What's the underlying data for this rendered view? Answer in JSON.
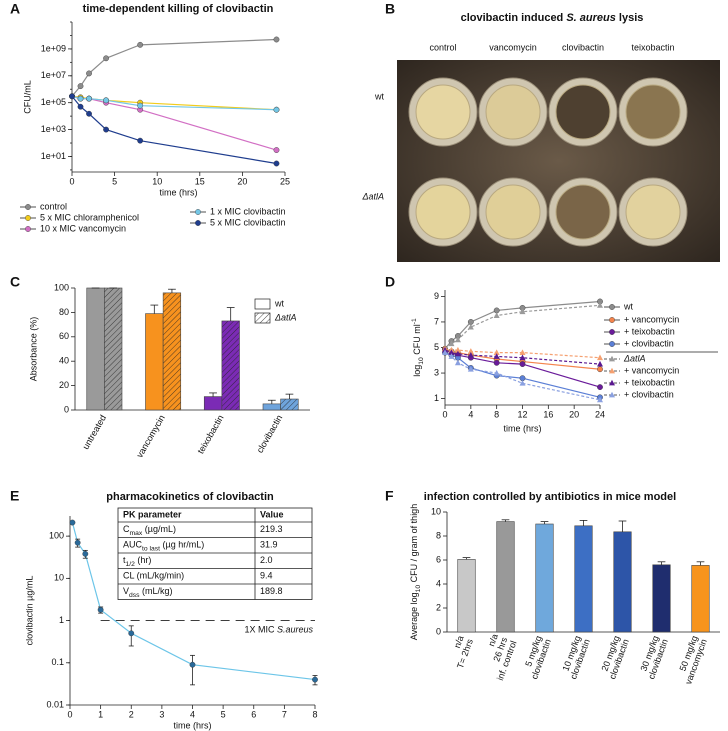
{
  "panel_labels": [
    "A",
    "B",
    "C",
    "D",
    "E",
    "F"
  ],
  "lysis_image": {
    "title": [
      "clovibactin induced ",
      "S. aureus",
      " lysis"
    ],
    "title_styles": [
      "normal",
      "italic",
      "normal"
    ],
    "columns": [
      "control",
      "vancomycin",
      "clovibactin",
      "teixobactin"
    ],
    "rows": [
      "wt",
      "ΔatlA"
    ],
    "row_styles": [
      "normal",
      "italic"
    ]
  },
  "chart_data": [
    {
      "type": "line",
      "title": "time-dependent killing of clovibactin",
      "xlabel": "time (hrs)",
      "ylabel": "CFU/mL",
      "yscale": "log",
      "xlim": [
        0,
        25
      ],
      "xticks": [
        0,
        5,
        10,
        15,
        20,
        25
      ],
      "ylim": [
        0.7,
        100000000000
      ],
      "yticks": [
        {
          "value": 10,
          "label": "1e+01"
        },
        {
          "value": 1000,
          "label": "1e+03"
        },
        {
          "value": 100000,
          "label": "1e+05"
        },
        {
          "value": 10000000,
          "label": "1e+07"
        },
        {
          "value": 1000000000,
          "label": "1e+09"
        }
      ],
      "x": [
        0,
        1,
        2,
        4,
        8,
        24
      ],
      "series": [
        {
          "name": "control",
          "color": "#8c8c8c",
          "marker": "circle",
          "values": [
            300000,
            1700000,
            15000000,
            200000000,
            2000000000,
            5000000000
          ]
        },
        {
          "name": "5 x MIC chloramphenicol",
          "color": "#f2cc1d",
          "marker": "circle",
          "values": [
            300000,
            250000,
            200000,
            150000,
            100000,
            30000
          ]
        },
        {
          "name": "10 x MIC vancomycin",
          "color": "#d26fc4",
          "marker": "circle",
          "values": [
            300000,
            200000,
            200000,
            100000,
            30000,
            30
          ]
        },
        {
          "name": "1 x MIC clovibactin",
          "color": "#74c7e6",
          "marker": "circle",
          "values": [
            300000,
            200000,
            200000,
            150000,
            60000,
            30000
          ]
        },
        {
          "name": "5 x MIC clovibactin",
          "color": "#1f3d8e",
          "marker": "circle",
          "values": [
            300000,
            50000,
            15000,
            1000,
            150,
            3
          ]
        }
      ]
    },
    {
      "type": "bar",
      "ylabel": "Absorbance (%)",
      "ylim": [
        0,
        100
      ],
      "yticks": [
        0,
        20,
        40,
        60,
        80,
        100
      ],
      "categories": [
        "untreated",
        "vancomycin",
        "teixobactin",
        "clovibactin"
      ],
      "colors": [
        "#9a9a9a",
        "#f7921e",
        "#7b2bb5",
        "#6fa4dc"
      ],
      "series": [
        {
          "name": "wt",
          "values": [
            100,
            79,
            11,
            5
          ],
          "errors": [
            0,
            7,
            3,
            3
          ]
        },
        {
          "name": "ΔatlA",
          "italic": true,
          "hatch": true,
          "values": [
            100,
            96,
            73,
            9
          ],
          "errors": [
            0,
            3,
            11,
            4
          ]
        }
      ]
    },
    {
      "type": "line",
      "xlabel": "time (hrs)",
      "ylabel": [
        "log",
        "10",
        " CFU ml",
        "-1"
      ],
      "ylabel_styles": [
        "normal",
        "sub",
        "normal",
        "sup"
      ],
      "xlim": [
        0,
        24
      ],
      "xticks": [
        0,
        4,
        8,
        12,
        16,
        20,
        24
      ],
      "ylim": [
        0.5,
        9.5
      ],
      "yticks": [
        1,
        3,
        5,
        7,
        9
      ],
      "x": [
        0,
        1,
        2,
        4,
        8,
        12,
        24
      ],
      "series": [
        {
          "name": "wt",
          "color": "#8c8c8c",
          "marker": "circle",
          "values": [
            4.9,
            5.5,
            5.9,
            7.0,
            7.9,
            8.1,
            8.6
          ]
        },
        {
          "name": "+ vancomycin",
          "color": "#f4844c",
          "marker": "circle",
          "values": [
            4.9,
            4.7,
            4.6,
            4.4,
            4.1,
            3.9,
            3.3
          ]
        },
        {
          "name": "+ teixobactin",
          "color": "#6a1b9a",
          "marker": "circle",
          "values": [
            4.8,
            4.6,
            4.4,
            4.2,
            3.8,
            3.7,
            1.9
          ]
        },
        {
          "name": "+ clovibactin",
          "color": "#5b7fd6",
          "marker": "circle",
          "values": [
            4.6,
            4.4,
            4.2,
            3.4,
            2.8,
            2.6,
            1.1
          ]
        },
        {
          "name": "ΔatlA",
          "italic": true,
          "color": "#9a9a9a",
          "marker": "triangle",
          "dash": true,
          "values": [
            4.9,
            5.3,
            5.6,
            6.6,
            7.5,
            7.8,
            8.3
          ]
        },
        {
          "name": "+ vancomycin",
          "color": "#f5a070",
          "marker": "triangle",
          "dash": true,
          "values": [
            4.9,
            4.8,
            4.8,
            4.7,
            4.6,
            4.6,
            4.2
          ]
        },
        {
          "name": "+ teixobactin",
          "color": "#5a1890",
          "marker": "triangle",
          "dash": true,
          "values": [
            4.8,
            4.6,
            4.5,
            4.4,
            4.3,
            4.2,
            3.7
          ]
        },
        {
          "name": "+ clovibactin",
          "color": "#8aa0e0",
          "marker": "triangle",
          "dash": true,
          "values": [
            4.6,
            4.3,
            3.8,
            3.3,
            3.0,
            2.2,
            0.9
          ]
        }
      ]
    },
    {
      "type": "line",
      "title": "pharmacokinetics of clovibactin",
      "xlabel": "time (hrs)",
      "ylabel": "clovibactin µg/mL",
      "yscale": "log",
      "xlim": [
        0,
        8
      ],
      "xticks": [
        0,
        1,
        2,
        3,
        4,
        5,
        6,
        7,
        8
      ],
      "ylim": [
        0.01,
        300
      ],
      "yticks": [
        0.01,
        0.1,
        1,
        10,
        100
      ],
      "x": [
        0.08,
        0.25,
        0.5,
        1,
        2,
        4,
        8
      ],
      "series": [
        {
          "color": "#6cc5e8",
          "marker_color": "#2a6a9a",
          "marker": "circle",
          "values": [
            210,
            70,
            38,
            1.8,
            0.5,
            0.09,
            0.04
          ],
          "errors": [
            0,
            15,
            8,
            0.3,
            0.25,
            0.06,
            0.01
          ]
        }
      ],
      "reference_line": {
        "value": 1,
        "label": [
          "1X MIC ",
          "S.aureus"
        ],
        "label_styles": [
          "normal",
          "italic"
        ]
      },
      "table": {
        "header": [
          "PK parameter",
          "Value"
        ],
        "rows": [
          {
            "parameter": [
              "C",
              "max",
              " (µg/mL)"
            ],
            "value": "219.3"
          },
          {
            "parameter": [
              "AUC",
              "to last",
              " (µg hr/mL)"
            ],
            "value": "31.9"
          },
          {
            "parameter": [
              "t",
              "1/2",
              " (hr)"
            ],
            "value": "2.0"
          },
          {
            "parameter": [
              "CL (mL/kg/min)"
            ],
            "value": "9.4"
          },
          {
            "parameter": [
              "V",
              "dss",
              " (mL/kg)"
            ],
            "value": "189.8"
          }
        ]
      }
    },
    {
      "type": "bar",
      "title": "infection controlled by antibiotics in mice model",
      "ylabel": [
        "Average log",
        "10",
        " CFU / gram of thigh"
      ],
      "ylabel_styles": [
        "normal",
        "sub",
        "normal"
      ],
      "ylim": [
        0,
        10
      ],
      "yticks": [
        0,
        2,
        4,
        6,
        8,
        10
      ],
      "categories": [
        [
          "n/a",
          "T= 2hrs"
        ],
        [
          "n/a",
          "26 hrs",
          "inf. control"
        ],
        [
          "5 mg/kg",
          "clovibactin"
        ],
        [
          "10 mg/kg",
          "clovibactin"
        ],
        [
          "20 mg/kg",
          "clovibactin"
        ],
        [
          "30 mg/kg",
          "clovibactin"
        ],
        [
          "50 mg/kg",
          "vancomycin"
        ]
      ],
      "colors": [
        "#c8c8c8",
        "#999999",
        "#6fa8dc",
        "#3d6fc4",
        "#2d55a8",
        "#1f2d6e",
        "#f7941d"
      ],
      "values": [
        6.05,
        9.2,
        9.0,
        8.85,
        8.35,
        5.6,
        5.55
      ],
      "errors": [
        0.15,
        0.15,
        0.2,
        0.45,
        0.9,
        0.25,
        0.3
      ]
    }
  ]
}
